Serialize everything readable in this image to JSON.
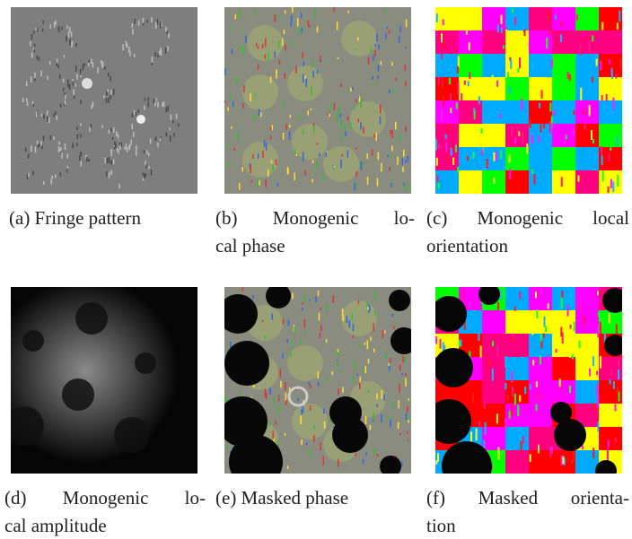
{
  "figures": [
    {
      "lines": [
        "(a) Fringe pattern"
      ]
    },
    {
      "lines": [
        "(b) Monogenic lo-",
        "cal phase"
      ]
    },
    {
      "lines": [
        "(c) Monogenic local",
        "orientation"
      ]
    },
    {
      "lines": [
        "(d) Monogenic lo-",
        "cal amplitude"
      ]
    },
    {
      "lines": [
        "(e) Masked phase"
      ]
    },
    {
      "lines": [
        "(f) Masked orienta-",
        "tion"
      ]
    }
  ]
}
